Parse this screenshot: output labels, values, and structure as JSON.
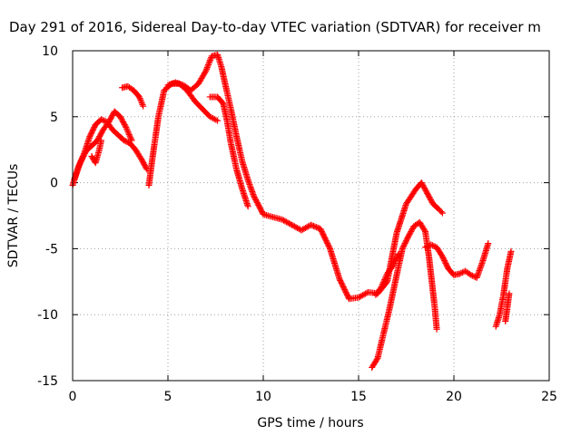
{
  "chart_data": {
    "type": "scatter",
    "title": "Day 291 of 2016, Sidereal Day-to-day VTEC variation (SDTVAR) for receiver m",
    "xlabel": "GPS time / hours",
    "ylabel": "SDTVAR / TECUs",
    "xlim": [
      0,
      25
    ],
    "ylim": [
      -15,
      10
    ],
    "xticks": [
      0,
      5,
      10,
      15,
      20,
      25
    ],
    "yticks": [
      -15,
      -10,
      -5,
      0,
      5,
      10
    ],
    "xtick_labels": [
      "0",
      "5",
      "10",
      "15",
      "20",
      "25"
    ],
    "ytick_labels": [
      "-15",
      "-10",
      "-5",
      "0",
      "5",
      "10"
    ],
    "grid": true,
    "marker": "+",
    "color": "#ff0000",
    "series": [
      {
        "x": [
          0.0,
          0.3,
          0.6,
          0.9,
          1.2,
          1.5,
          1.8,
          2.1,
          2.4,
          2.7,
          3.0,
          3.3,
          3.6,
          3.9
        ],
        "y": [
          -0.2,
          1.2,
          2.2,
          3.5,
          4.4,
          4.8,
          4.6,
          4.0,
          3.6,
          3.2,
          3.0,
          2.5,
          1.8,
          1.0
        ]
      },
      {
        "x": [
          0.1,
          0.4,
          0.7,
          1.0,
          1.3,
          1.6,
          1.9,
          2.2,
          2.5,
          2.8,
          3.1
        ],
        "y": [
          0.3,
          1.5,
          2.4,
          2.8,
          3.2,
          4.0,
          4.6,
          5.4,
          5.0,
          4.2,
          3.2
        ]
      },
      {
        "x": [
          1.0,
          1.2,
          1.4,
          1.5
        ],
        "y": [
          2.0,
          1.5,
          2.5,
          3.2
        ]
      },
      {
        "x": [
          2.6,
          2.9,
          3.2,
          3.5,
          3.7
        ],
        "y": [
          7.2,
          7.3,
          7.0,
          6.5,
          5.8
        ]
      },
      {
        "x": [
          4.0,
          4.2,
          4.5,
          4.8,
          5.2,
          5.6,
          6.0,
          6.4,
          6.8,
          7.2,
          7.6
        ],
        "y": [
          -0.2,
          2.0,
          5.0,
          7.0,
          7.5,
          7.5,
          7.0,
          6.2,
          5.6,
          5.0,
          4.7
        ]
      },
      {
        "x": [
          5.0,
          5.4,
          5.8,
          6.2,
          6.6,
          7.0,
          7.3,
          7.6,
          7.8,
          8.0,
          8.3,
          8.6,
          8.9,
          9.2,
          9.5,
          10.0,
          10.5,
          11.0,
          11.5,
          12.0,
          12.5,
          13.0,
          13.5,
          14.0,
          14.5,
          15.0,
          15.5,
          16.0,
          16.5,
          17.0,
          17.5,
          18.0,
          18.3,
          18.6,
          18.9,
          19.2,
          19.4
        ],
        "y": [
          7.4,
          7.6,
          7.4,
          7.0,
          7.5,
          8.5,
          9.6,
          9.7,
          8.8,
          7.5,
          5.6,
          3.5,
          1.6,
          0.2,
          -1.0,
          -2.4,
          -2.6,
          -2.8,
          -3.2,
          -3.6,
          -3.2,
          -3.5,
          -5.0,
          -7.3,
          -8.8,
          -8.7,
          -8.3,
          -8.4,
          -7.5,
          -3.8,
          -1.6,
          -0.5,
          0.0,
          -0.8,
          -1.6,
          -2.0,
          -2.3
        ]
      },
      {
        "x": [
          7.2,
          7.6,
          7.9,
          8.1,
          8.3,
          8.6,
          8.9,
          9.2
        ],
        "y": [
          6.5,
          6.5,
          6.0,
          4.7,
          3.0,
          1.0,
          -0.5,
          -1.8
        ]
      },
      {
        "x": [
          15.7,
          16.0,
          16.3,
          16.6,
          17.0,
          17.3,
          17.6,
          17.9,
          18.2,
          18.5,
          18.7,
          19.0,
          19.1
        ],
        "y": [
          -14.0,
          -13.3,
          -11.5,
          -9.7,
          -7.0,
          -5.0,
          -4.1,
          -3.3,
          -3.0,
          -3.7,
          -5.7,
          -9.5,
          -11.1
        ]
      },
      {
        "x": [
          15.9,
          16.2,
          16.5,
          16.8,
          17.1
        ],
        "y": [
          -8.5,
          -7.9,
          -6.9,
          -6.3,
          -5.4
        ]
      },
      {
        "x": [
          18.5,
          18.8,
          19.1,
          19.4,
          19.7,
          20.0,
          20.3,
          20.6,
          20.9,
          21.2,
          21.5,
          21.8
        ],
        "y": [
          -4.9,
          -4.7,
          -4.9,
          -5.6,
          -6.5,
          -7.0,
          -6.9,
          -6.7,
          -7.0,
          -7.2,
          -6.0,
          -4.6
        ]
      },
      {
        "x": [
          22.2,
          22.4,
          22.6,
          22.8,
          23.0
        ],
        "y": [
          -10.9,
          -10.0,
          -8.5,
          -6.5,
          -5.2
        ]
      },
      {
        "x": [
          22.7,
          22.8,
          22.9
        ],
        "y": [
          -10.5,
          -9.5,
          -8.4
        ]
      }
    ]
  }
}
